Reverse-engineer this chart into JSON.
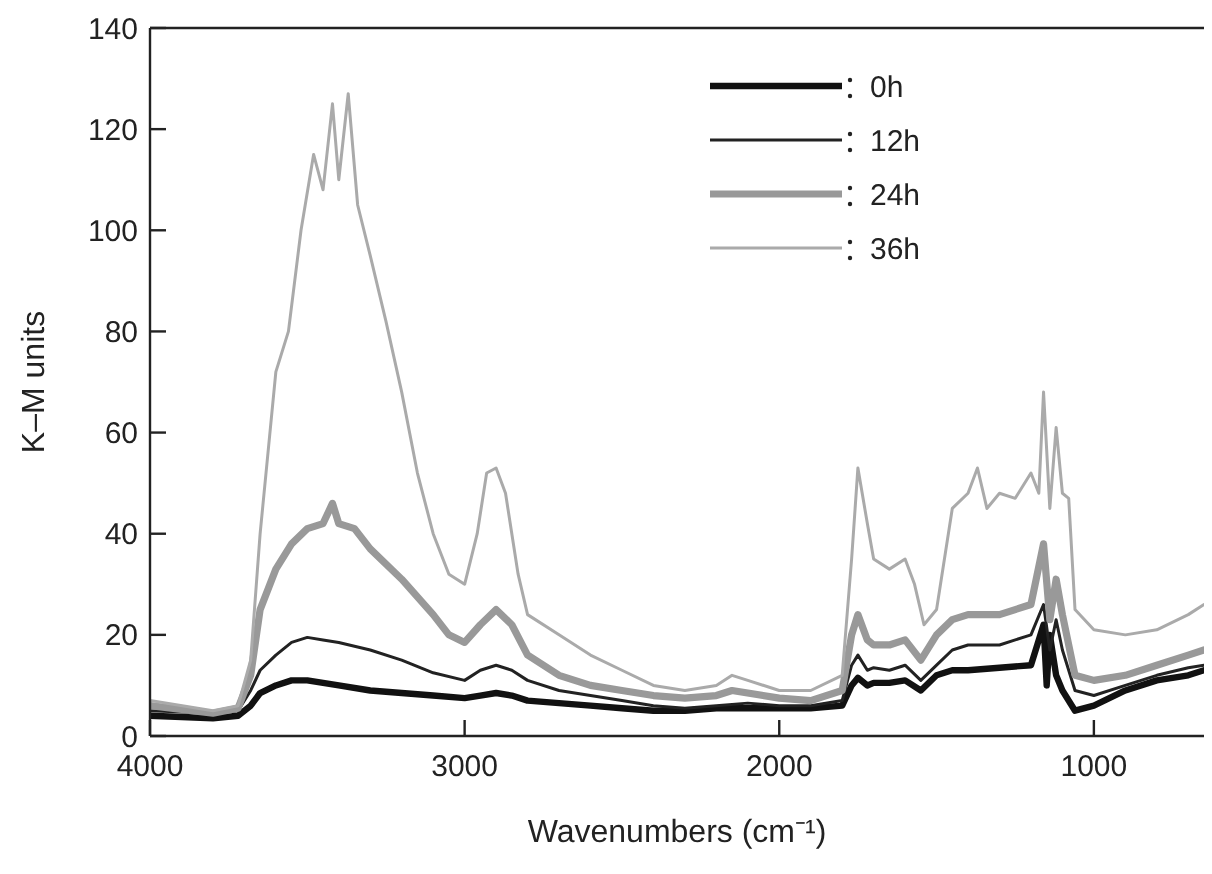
{
  "chart_data": {
    "type": "line",
    "xlabel": "Wavenumbers (cm⁻¹)",
    "ylabel": "K–M units",
    "xlim": [
      4000,
      650
    ],
    "xticks": [
      4000,
      3000,
      2000,
      1000
    ],
    "ylim": [
      0,
      140
    ],
    "yticks": [
      0,
      20,
      40,
      60,
      80,
      100,
      120,
      140
    ],
    "legend": "top right",
    "grid": false,
    "series": [
      {
        "name": "0h",
        "color": "#111111",
        "x": [
          4000,
          3800,
          3720,
          3680,
          3650,
          3600,
          3550,
          3500,
          3450,
          3400,
          3300,
          3200,
          3100,
          3000,
          2950,
          2900,
          2850,
          2800,
          2700,
          2600,
          2500,
          2400,
          2300,
          2200,
          2100,
          2000,
          1900,
          1800,
          1770,
          1750,
          1720,
          1700,
          1650,
          1600,
          1550,
          1500,
          1450,
          1400,
          1300,
          1200,
          1160,
          1150,
          1140,
          1120,
          1100,
          1060,
          1000,
          900,
          800,
          700,
          650
        ],
        "values": [
          4,
          3.5,
          4,
          6,
          8.5,
          10,
          11,
          11,
          10.5,
          10,
          9,
          8.5,
          8,
          7.5,
          8,
          8.5,
          8,
          7,
          6.5,
          6,
          5.5,
          5,
          5,
          5.5,
          5.5,
          5.5,
          5.5,
          6,
          10,
          11.5,
          10,
          10.5,
          10.5,
          11,
          9,
          12,
          13,
          13,
          13.5,
          14,
          22,
          10,
          20,
          12,
          9,
          5,
          6,
          9,
          11,
          12,
          13
        ]
      },
      {
        "name": "12h",
        "color": "#222222",
        "x": [
          4000,
          3800,
          3720,
          3680,
          3650,
          3600,
          3550,
          3500,
          3450,
          3400,
          3300,
          3200,
          3100,
          3000,
          2950,
          2900,
          2850,
          2800,
          2700,
          2600,
          2500,
          2400,
          2300,
          2200,
          2100,
          2000,
          1900,
          1800,
          1770,
          1750,
          1720,
          1700,
          1650,
          1600,
          1550,
          1500,
          1450,
          1400,
          1300,
          1200,
          1160,
          1140,
          1120,
          1100,
          1060,
          1000,
          900,
          800,
          700,
          650
        ],
        "values": [
          5,
          4.5,
          5,
          9,
          13,
          16,
          18.5,
          19.5,
          19,
          18.5,
          17,
          15,
          12.5,
          11,
          13,
          14,
          13,
          11,
          9,
          8,
          7,
          6,
          5.5,
          6,
          6.5,
          6,
          6,
          7,
          14,
          16,
          13,
          13.5,
          13,
          14,
          11,
          14,
          17,
          18,
          18,
          20,
          26,
          17,
          23,
          17,
          9,
          8,
          10,
          12,
          13.5,
          14
        ]
      },
      {
        "name": "24h",
        "color": "#999999",
        "x": [
          4000,
          3800,
          3720,
          3680,
          3650,
          3600,
          3550,
          3500,
          3450,
          3420,
          3400,
          3350,
          3300,
          3200,
          3100,
          3050,
          3000,
          2950,
          2900,
          2850,
          2800,
          2700,
          2600,
          2500,
          2400,
          2300,
          2200,
          2150,
          2000,
          1900,
          1800,
          1770,
          1750,
          1720,
          1700,
          1650,
          1600,
          1550,
          1500,
          1450,
          1400,
          1300,
          1200,
          1160,
          1140,
          1120,
          1100,
          1060,
          1000,
          900,
          800,
          700,
          650
        ],
        "values": [
          6,
          4.5,
          5.5,
          12,
          25,
          33,
          38,
          41,
          42,
          46,
          42,
          41,
          37,
          31,
          24,
          20,
          18.5,
          22,
          25,
          22,
          16,
          12,
          10,
          9,
          8,
          7.5,
          8,
          9,
          7.5,
          7,
          9,
          20,
          24,
          19,
          18,
          18,
          19,
          15,
          20,
          23,
          24,
          24,
          26,
          38,
          23,
          31,
          24,
          12,
          11,
          12,
          14,
          16,
          17
        ]
      },
      {
        "name": "36h",
        "color": "#aaaaaa",
        "x": [
          4000,
          3800,
          3720,
          3680,
          3650,
          3600,
          3560,
          3520,
          3480,
          3450,
          3420,
          3400,
          3370,
          3340,
          3300,
          3250,
          3200,
          3150,
          3100,
          3050,
          3000,
          2960,
          2930,
          2900,
          2870,
          2830,
          2800,
          2700,
          2600,
          2500,
          2400,
          2300,
          2200,
          2150,
          2100,
          2000,
          1900,
          1800,
          1770,
          1750,
          1720,
          1700,
          1650,
          1600,
          1570,
          1540,
          1500,
          1450,
          1400,
          1370,
          1340,
          1300,
          1250,
          1200,
          1175,
          1160,
          1140,
          1120,
          1100,
          1080,
          1060,
          1000,
          900,
          800,
          700,
          650
        ],
        "values": [
          7,
          5,
          6,
          15,
          40,
          72,
          80,
          100,
          115,
          108,
          125,
          110,
          127,
          105,
          95,
          82,
          68,
          52,
          40,
          32,
          30,
          40,
          52,
          53,
          48,
          32,
          24,
          20,
          16,
          13,
          10,
          9,
          10,
          12,
          11,
          9,
          9,
          12,
          35,
          53,
          42,
          35,
          33,
          35,
          30,
          22,
          25,
          45,
          48,
          53,
          45,
          48,
          47,
          52,
          48,
          68,
          45,
          61,
          48,
          47,
          25,
          21,
          20,
          21,
          24,
          26
        ]
      }
    ]
  }
}
